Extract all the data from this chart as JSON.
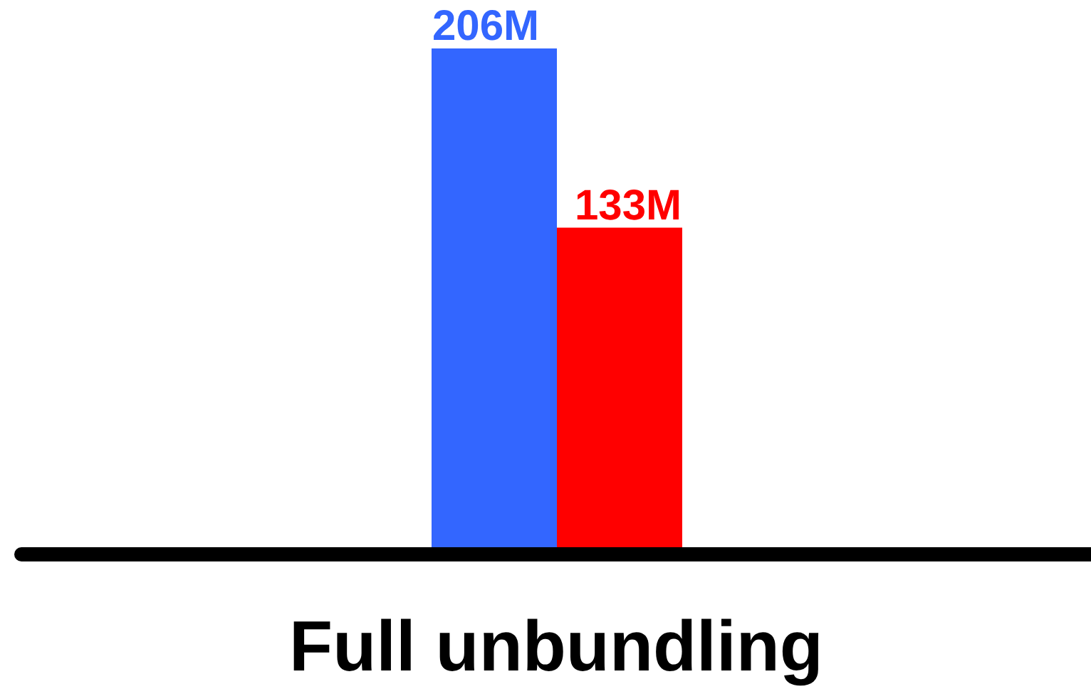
{
  "chart_data": {
    "type": "bar",
    "categories": [
      "Full unbundling"
    ],
    "series": [
      {
        "color": "#3366ff",
        "values": [
          206
        ],
        "value_labels": [
          "206M"
        ]
      },
      {
        "color": "#ff0000",
        "values": [
          133
        ],
        "value_labels": [
          "133M"
        ]
      }
    ]
  }
}
